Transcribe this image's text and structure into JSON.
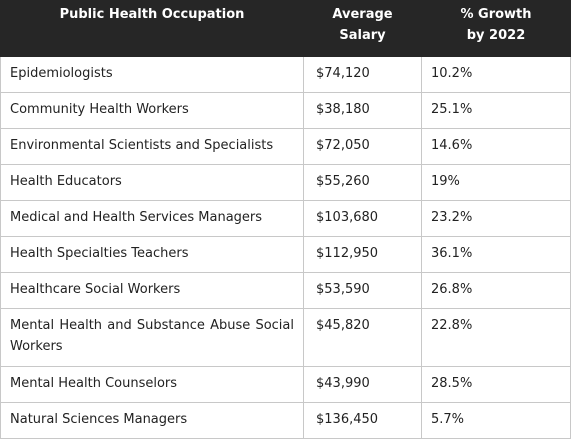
{
  "table": {
    "headers": {
      "occupation": "Public Health Occupation",
      "salary_line1": "Average",
      "salary_line2": "Salary",
      "growth_line1": "% Growth",
      "growth_line2": "by 2022"
    },
    "rows": [
      {
        "occupation": "Epidemiologists",
        "salary": "$74,120",
        "growth": "10.2%"
      },
      {
        "occupation": "Community Health Workers",
        "salary": "$38,180",
        "growth": "25.1%"
      },
      {
        "occupation": "Environmental Scientists and Specialists",
        "salary": "$72,050",
        "growth": "14.6%"
      },
      {
        "occupation": "Health Educators",
        "salary": "$55,260",
        "growth": "19%"
      },
      {
        "occupation": "Medical and Health Services Managers",
        "salary": "$103,680",
        "growth": "23.2%"
      },
      {
        "occupation": "Health Specialties Teachers",
        "salary": "$112,950",
        "growth": "36.1%"
      },
      {
        "occupation": "Healthcare Social Workers",
        "salary": "$53,590",
        "growth": "26.8%"
      },
      {
        "occupation": "Mental Health and Substance Abuse Social Workers",
        "salary": "$45,820",
        "growth": "22.8%"
      },
      {
        "occupation": "Mental Health Counselors",
        "salary": "$43,990",
        "growth": "28.5%"
      },
      {
        "occupation": "Natural Sciences Managers",
        "salary": "$136,450",
        "growth": "5.7%"
      }
    ]
  }
}
